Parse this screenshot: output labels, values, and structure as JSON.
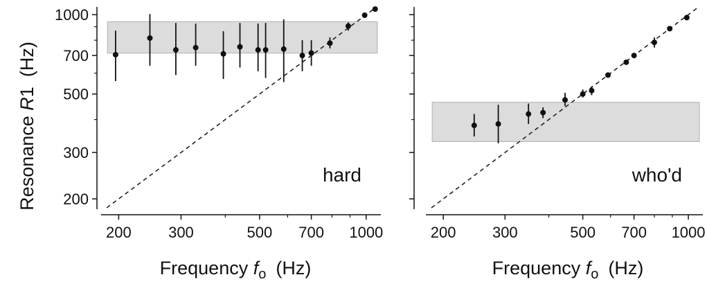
{
  "figure": {
    "ylabel": {
      "prefix": "Resonance ",
      "var": "R",
      "sub": "1",
      "unit": "(Hz)"
    },
    "xlabel": {
      "prefix": "Frequency ",
      "var": "f",
      "sub": "o",
      "unit": "(Hz)"
    }
  },
  "chart_data": [
    {
      "type": "scatter",
      "panel_label": "hard",
      "x_scale": "log",
      "y_scale": "log",
      "xlim": [
        180,
        1100
      ],
      "ylim": [
        185,
        1070
      ],
      "x_ticks": [
        200,
        300,
        500,
        700,
        1000
      ],
      "y_ticks": [
        200,
        300,
        500,
        700,
        1000
      ],
      "x_minor_ticks": [
        400,
        600,
        800,
        900
      ],
      "y_minor_ticks": [
        400,
        600,
        800,
        900
      ],
      "band": {
        "y_low": 715,
        "y_high": 940,
        "x_from": 186,
        "x_to": 1075
      },
      "reference_line": "y = x",
      "points": [
        {
          "x": 196,
          "y": 705,
          "y_low": 560,
          "y_high": 870
        },
        {
          "x": 245,
          "y": 815,
          "y_low": 640,
          "y_high": 1005
        },
        {
          "x": 290,
          "y": 735,
          "y_low": 590,
          "y_high": 930
        },
        {
          "x": 330,
          "y": 750,
          "y_low": 640,
          "y_high": 925
        },
        {
          "x": 395,
          "y": 710,
          "y_low": 570,
          "y_high": 865
        },
        {
          "x": 440,
          "y": 755,
          "y_low": 630,
          "y_high": 930
        },
        {
          "x": 495,
          "y": 735,
          "y_low": 610,
          "y_high": 925
        },
        {
          "x": 520,
          "y": 735,
          "y_low": 575,
          "y_high": 930
        },
        {
          "x": 585,
          "y": 740,
          "y_low": 555,
          "y_high": 960
        },
        {
          "x": 660,
          "y": 700,
          "y_low": 610,
          "y_high": 800
        },
        {
          "x": 700,
          "y": 715,
          "y_low": 640,
          "y_high": 800
        },
        {
          "x": 790,
          "y": 780,
          "y_low": 745,
          "y_high": 820
        },
        {
          "x": 890,
          "y": 905,
          "y_low": 870,
          "y_high": 935
        },
        {
          "x": 990,
          "y": 995,
          "y_low": 975,
          "y_high": 1015
        },
        {
          "x": 1060,
          "y": 1050,
          "y_low": 1030,
          "y_high": 1070
        }
      ]
    },
    {
      "type": "scatter",
      "panel_label": "who'd",
      "x_scale": "log",
      "y_scale": "log",
      "xlim": [
        180,
        1100
      ],
      "ylim": [
        185,
        1070
      ],
      "x_ticks": [
        200,
        300,
        500,
        700,
        1000
      ],
      "y_ticks": [
        200,
        300,
        500,
        700,
        1000
      ],
      "x_minor_ticks": [
        400,
        600,
        800,
        900
      ],
      "y_minor_ticks": [
        400,
        600,
        800,
        900
      ],
      "band": {
        "y_low": 330,
        "y_high": 465,
        "x_from": 186,
        "x_to": 1075
      },
      "reference_line": "y = x",
      "points": [
        {
          "x": 245,
          "y": 380,
          "y_low": 345,
          "y_high": 420
        },
        {
          "x": 287,
          "y": 385,
          "y_low": 325,
          "y_high": 455
        },
        {
          "x": 350,
          "y": 420,
          "y_low": 385,
          "y_high": 460
        },
        {
          "x": 385,
          "y": 425,
          "y_low": 405,
          "y_high": 445
        },
        {
          "x": 445,
          "y": 475,
          "y_low": 450,
          "y_high": 505
        },
        {
          "x": 500,
          "y": 500,
          "y_low": 485,
          "y_high": 520
        },
        {
          "x": 530,
          "y": 515,
          "y_low": 495,
          "y_high": 535
        },
        {
          "x": 590,
          "y": 590,
          "y_low": 580,
          "y_high": 600
        },
        {
          "x": 665,
          "y": 660,
          "y_low": 648,
          "y_high": 672
        },
        {
          "x": 700,
          "y": 700,
          "y_low": 690,
          "y_high": 712
        },
        {
          "x": 800,
          "y": 785,
          "y_low": 750,
          "y_high": 820
        },
        {
          "x": 885,
          "y": 885,
          "y_low": 870,
          "y_high": 902
        },
        {
          "x": 990,
          "y": 975,
          "y_low": 960,
          "y_high": 995
        }
      ]
    }
  ]
}
